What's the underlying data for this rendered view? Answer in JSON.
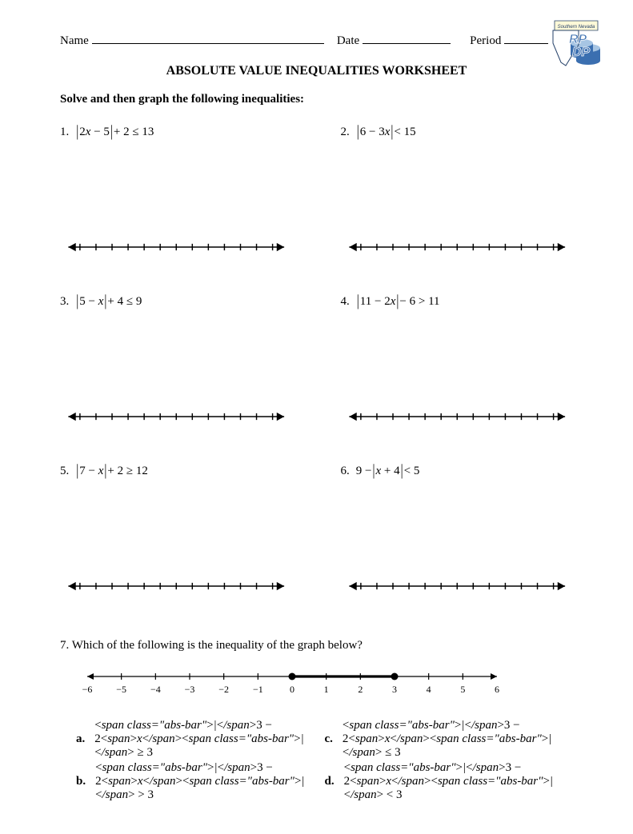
{
  "header": {
    "name_label": "Name",
    "date_label": "Date",
    "period_label": "Period",
    "name_line_width": 290,
    "date_line_width": 110,
    "period_line_width": 55
  },
  "logo": {
    "text_top": "RP",
    "text_bottom": "DP",
    "primary_color": "#3b6fb0",
    "accent_color": "#a7c5e3",
    "dark_color": "#26426a",
    "banner_text": "Southern Nevada"
  },
  "title": "ABSOLUTE VALUE INEQUALITIES WORKSHEET",
  "instruction": "Solve and then graph the following inequalities:",
  "problems": [
    {
      "number": "1.",
      "abs_inner": "2x − 5",
      "after_abs": " + 2 ≤ 13",
      "before_abs": ""
    },
    {
      "number": "2.",
      "abs_inner": "6 − 3x",
      "after_abs": " < 15",
      "before_abs": ""
    },
    {
      "number": "3.",
      "abs_inner": "5 − x",
      "after_abs": " + 4 ≤ 9",
      "before_abs": ""
    },
    {
      "number": "4.",
      "abs_inner": "11 − 2x",
      "after_abs": " − 6 > 11",
      "before_abs": ""
    },
    {
      "number": "5.",
      "abs_inner": "7 − x",
      "after_abs": " + 2 ≥ 12",
      "before_abs": ""
    },
    {
      "number": "6.",
      "abs_inner": "x + 4",
      "after_abs": " < 5",
      "before_abs": "9 − "
    }
  ],
  "blank_numberline": {
    "ticks": 13,
    "stroke": "#000000",
    "stroke_width": 1.4
  },
  "q7": {
    "text": "7.  Which of the following is the inequality of the graph below?",
    "line": {
      "min": -6,
      "max": 6,
      "ticks": [
        -5,
        -4,
        -3,
        -2,
        -1,
        0,
        1,
        2,
        3,
        4,
        5
      ],
      "label_min": "-6",
      "label_max": "6",
      "closed_points": [
        0,
        3
      ],
      "segment": [
        0,
        3
      ],
      "font_size": 12,
      "stroke": "#000000"
    },
    "choices": [
      {
        "letter": "a.",
        "expr": "|3 − 2x| ≥ 3"
      },
      {
        "letter": "c.",
        "expr": "|3 − 2x| ≤ 3"
      },
      {
        "letter": "b.",
        "expr": "|3 − 2x| > 3"
      },
      {
        "letter": "d.",
        "expr": "|3 − 2x| < 3"
      }
    ]
  }
}
